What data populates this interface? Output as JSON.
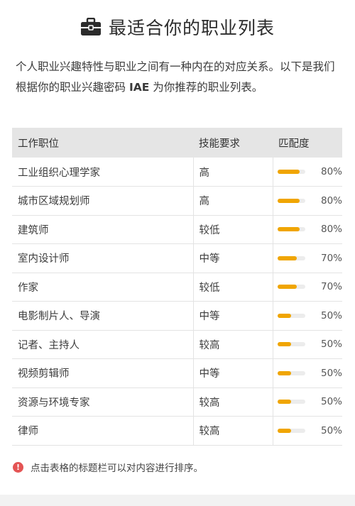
{
  "header": {
    "title": "最适合你的职业列表",
    "icon": "briefcase-icon"
  },
  "intro": {
    "text_before": "个人职业兴趣特性与职业之间有一种内在的对应关系。以下是我们根据你的职业兴趣密码 ",
    "code": "IAE",
    "text_after": " 为你推荐的职业列表。"
  },
  "table": {
    "headers": [
      "工作职位",
      "技能要求",
      "匹配度"
    ],
    "rows": [
      {
        "job": "工业组织心理学家",
        "skill": "高",
        "match": "80%",
        "fraction": 0.8
      },
      {
        "job": "城市区域规划师",
        "skill": "高",
        "match": "80%",
        "fraction": 0.8
      },
      {
        "job": "建筑师",
        "skill": "较低",
        "match": "80%",
        "fraction": 0.8
      },
      {
        "job": "室内设计师",
        "skill": "中等",
        "match": "70%",
        "fraction": 0.7
      },
      {
        "job": "作家",
        "skill": "较低",
        "match": "70%",
        "fraction": 0.7
      },
      {
        "job": "电影制片人、导演",
        "skill": "中等",
        "match": "50%",
        "fraction": 0.5
      },
      {
        "job": "记者、主持人",
        "skill": "较高",
        "match": "50%",
        "fraction": 0.5
      },
      {
        "job": "视频剪辑师",
        "skill": "中等",
        "match": "50%",
        "fraction": 0.5
      },
      {
        "job": "资源与环境专家",
        "skill": "较高",
        "match": "50%",
        "fraction": 0.5
      },
      {
        "job": "律师",
        "skill": "较高",
        "match": "50%",
        "fraction": 0.5
      }
    ]
  },
  "note": {
    "icon": "exclamation-icon",
    "text": "点击表格的标题栏可以对内容进行排序。"
  },
  "colors": {
    "bar_fill": "#f0a500",
    "bar_track": "#ececec",
    "header_bg": "#e5e5e5",
    "warning": "#e45454"
  }
}
